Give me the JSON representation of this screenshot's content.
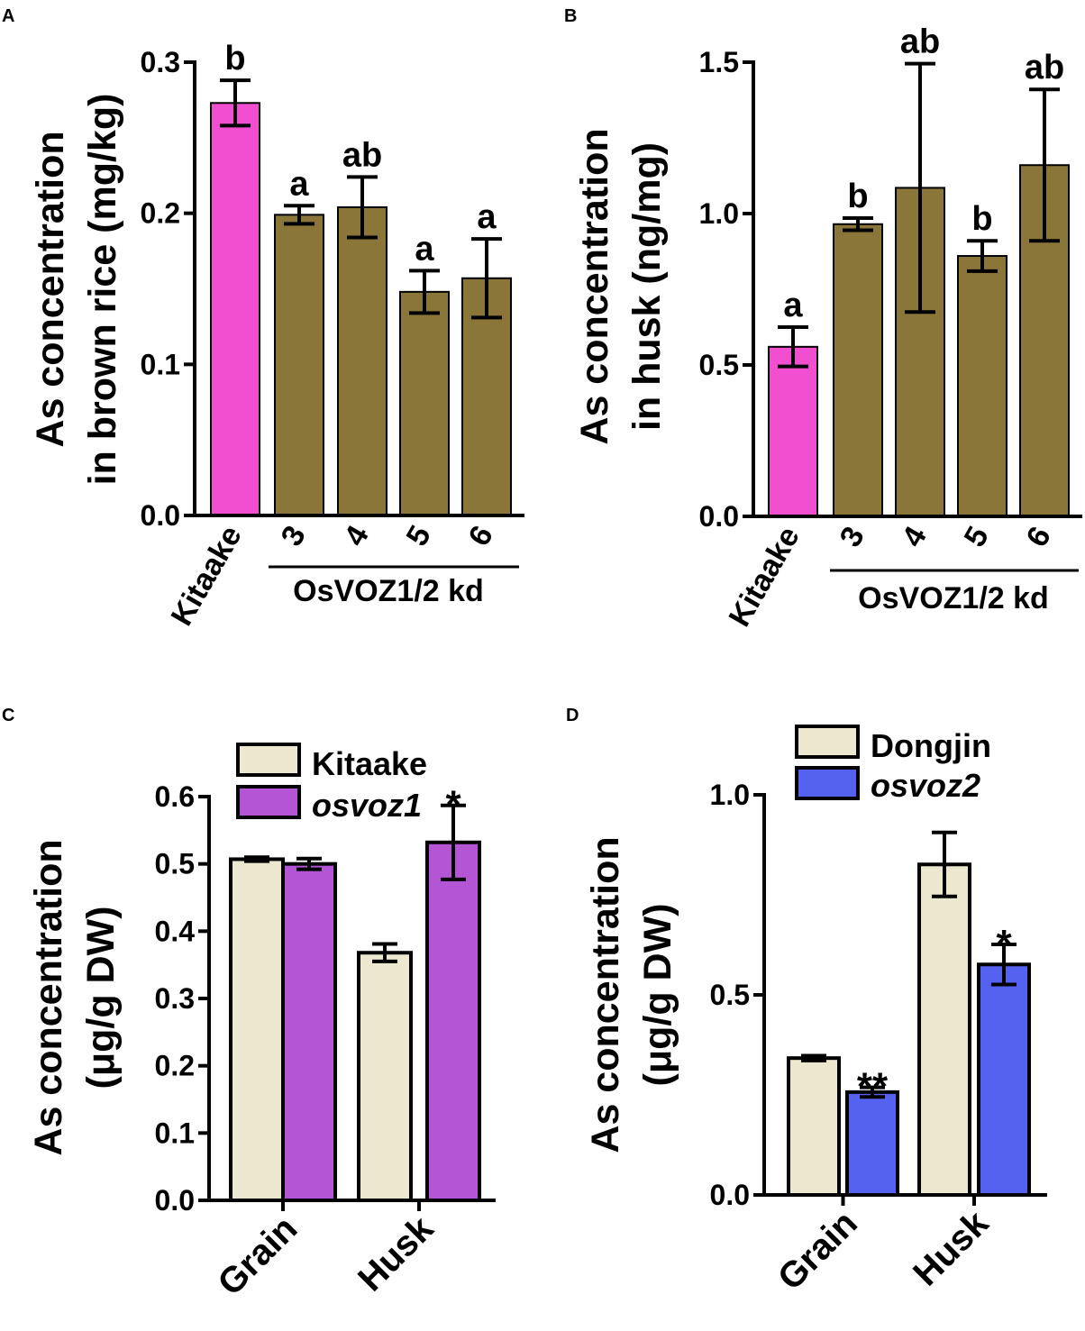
{
  "colors": {
    "kitaake_bar": "#f24fd0",
    "kd_bar": "#8a7639",
    "grain_kitaake": "#ece7cf",
    "osvoz1": "#b455d6",
    "dongjin": "#ece7cf",
    "osvoz2": "#5562f0"
  },
  "chart_data": [
    {
      "panel": "A",
      "type": "bar",
      "ylabel_line1": "As concentration",
      "ylabel_line2": "in brown rice (mg/kg)",
      "ylim": [
        0,
        0.3
      ],
      "yticks": [
        "0.0",
        "0.1",
        "0.2",
        "0.3"
      ],
      "categories": [
        "Kitaake",
        "3",
        "4",
        "5",
        "6"
      ],
      "group_label": "OsVOZ1/2 kd",
      "values": [
        0.273,
        0.199,
        0.204,
        0.148,
        0.157
      ],
      "errors": [
        0.015,
        0.006,
        0.02,
        0.014,
        0.026
      ],
      "letters": [
        "b",
        "a",
        "ab",
        "a",
        "a"
      ]
    },
    {
      "panel": "B",
      "type": "bar",
      "ylabel_line1": "As concentration",
      "ylabel_line2": "in husk (ng/mg)",
      "ylim": [
        0,
        1.5
      ],
      "yticks": [
        "0.0",
        "0.5",
        "1.0",
        "1.5"
      ],
      "categories": [
        "Kitaake",
        "3",
        "4",
        "5",
        "6"
      ],
      "group_label": "OsVOZ1/2 kd",
      "values": [
        0.56,
        0.965,
        1.085,
        0.86,
        1.16
      ],
      "errors": [
        0.065,
        0.02,
        0.41,
        0.05,
        0.25
      ],
      "letters": [
        "a",
        "b",
        "ab",
        "b",
        "ab"
      ]
    },
    {
      "panel": "C",
      "type": "bar",
      "ylabel_line1": "As concentration",
      "ylabel_line2": "(μg/g DW)",
      "ylim": [
        0,
        0.6
      ],
      "yticks": [
        "0.0",
        "0.1",
        "0.2",
        "0.3",
        "0.4",
        "0.5",
        "0.6"
      ],
      "categories": [
        "Grain",
        "Husk"
      ],
      "series": [
        {
          "name": "Kitaake",
          "values": [
            0.507,
            0.368
          ],
          "errors": [
            0.003,
            0.013
          ]
        },
        {
          "name": "osvoz1",
          "values": [
            0.5,
            0.532
          ],
          "errors": [
            0.008,
            0.055
          ]
        }
      ],
      "annotations": [
        "",
        "*"
      ]
    },
    {
      "panel": "D",
      "type": "bar",
      "ylabel_line1": "As concentration",
      "ylabel_line2": "(μg/g DW)",
      "ylim": [
        0,
        1.0
      ],
      "yticks": [
        "0.0",
        "0.5",
        "1.0"
      ],
      "categories": [
        "Grain",
        "Husk"
      ],
      "series": [
        {
          "name": "Dongjin",
          "values": [
            0.342,
            0.826
          ],
          "errors": [
            0.006,
            0.08
          ]
        },
        {
          "name": "osvoz2",
          "values": [
            0.257,
            0.576
          ],
          "errors": [
            0.012,
            0.05
          ]
        }
      ],
      "annotations": [
        "**",
        "*"
      ]
    }
  ]
}
